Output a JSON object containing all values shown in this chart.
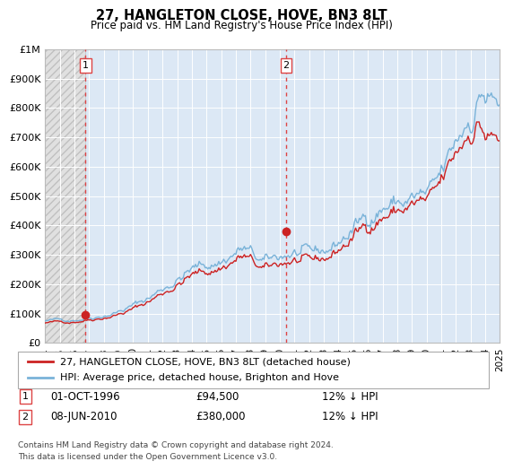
{
  "title": "27, HANGLETON CLOSE, HOVE, BN3 8LT",
  "subtitle": "Price paid vs. HM Land Registry's House Price Index (HPI)",
  "sale1_date": "01-OCT-1996",
  "sale1_price": 94500,
  "sale1_label": "12% ↓ HPI",
  "sale2_date": "08-JUN-2010",
  "sale2_price": 380000,
  "sale2_label": "12% ↓ HPI",
  "legend_line1": "27, HANGLETON CLOSE, HOVE, BN3 8LT (detached house)",
  "legend_line2": "HPI: Average price, detached house, Brighton and Hove",
  "footer1": "Contains HM Land Registry data © Crown copyright and database right 2024.",
  "footer2": "This data is licensed under the Open Government Licence v3.0.",
  "hpi_color": "#7ab3d9",
  "price_color": "#cc2222",
  "marker_color": "#cc2222",
  "dashed_color": "#dd4444",
  "bg_plot": "#dce8f5",
  "bg_hatch": "#e0e0e0",
  "ylim": [
    0,
    1000000
  ],
  "yticks": [
    0,
    100000,
    200000,
    300000,
    400000,
    500000,
    600000,
    700000,
    800000,
    900000,
    1000000
  ],
  "ytick_labels": [
    "£0",
    "£100K",
    "£200K",
    "£300K",
    "£400K",
    "£500K",
    "£600K",
    "£700K",
    "£800K",
    "£900K",
    "£1M"
  ],
  "sale1_year": 1996.75,
  "sale2_year": 2010.42,
  "xmin": 1994,
  "xmax": 2025,
  "xticks": [
    1994,
    1995,
    1996,
    1997,
    1998,
    1999,
    2000,
    2001,
    2002,
    2003,
    2004,
    2005,
    2006,
    2007,
    2008,
    2009,
    2010,
    2011,
    2012,
    2013,
    2014,
    2015,
    2016,
    2017,
    2018,
    2019,
    2020,
    2021,
    2022,
    2023,
    2024,
    2025
  ]
}
